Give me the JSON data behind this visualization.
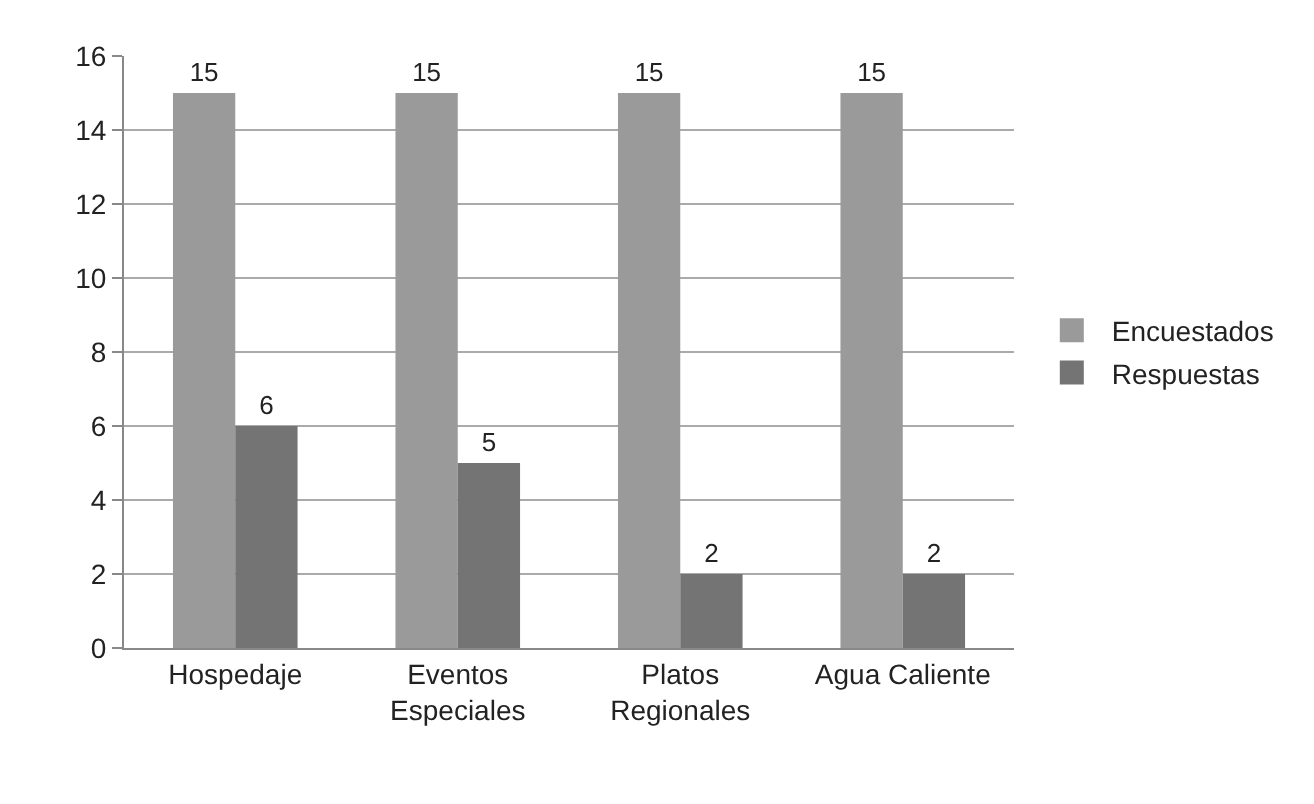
{
  "chart_data": {
    "type": "bar",
    "categories": [
      "Hospedaje",
      "Eventos Especiales",
      "Platos Regionales",
      "Agua Caliente"
    ],
    "series": [
      {
        "name": "Encuestados",
        "color": "#9a9a9a",
        "values": [
          15,
          15,
          15,
          15
        ]
      },
      {
        "name": "Respuestas",
        "color": "#747474",
        "values": [
          6,
          5,
          2,
          2
        ]
      }
    ],
    "ylim": [
      0,
      16
    ],
    "yticks": [
      0,
      2,
      4,
      6,
      8,
      10,
      12,
      14,
      16
    ],
    "grid": "y",
    "legend": "right",
    "data_labels": true
  }
}
